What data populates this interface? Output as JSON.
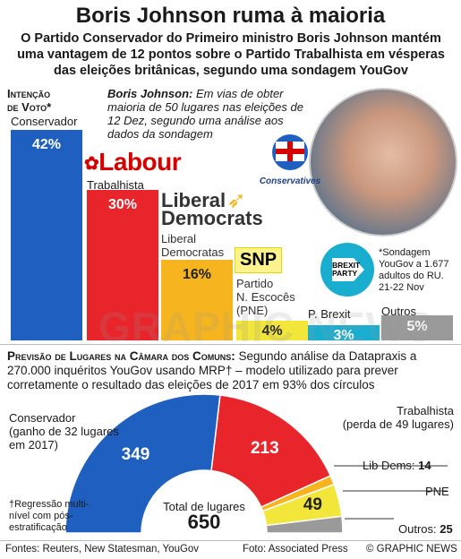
{
  "header": {
    "title": "Boris Johnson ruma à maioria",
    "subtitle": "O Partido Conservador do Primeiro ministro Boris Johnson mantém uma vantagem de 12 pontos sobre o Partido Trabalhista em vésperas das eleições britânicas, segundo uma sondagem YouGov"
  },
  "poll": {
    "heading_line1": "Intenção",
    "heading_line2": "de Voto*",
    "quote_name": "Boris Johnson:",
    "quote_text": " Em vias de obter maioria de 50 lugares nas eleições de 12 Dez, segundo uma análise aos dados da sondagem",
    "footnote": "*Sondagem YouGov a 1.677 adultos do RU. 21-22 Nov",
    "conservatives_logo_text": "Conservatives"
  },
  "logos": {
    "labour": "Labour",
    "libdem_line1": "Liberal",
    "libdem_line2": "Democrats",
    "snp": "SNP",
    "brexit_line1": "BREXIT",
    "brexit_line2": "PARTY"
  },
  "chart_data": [
    {
      "type": "bar",
      "categories": [
        "Conservador",
        "Trabalhista",
        "Liberal Democratas",
        "Partido N. Escocês (PNE)",
        "P. Brexit",
        "Outros"
      ],
      "values": [
        42,
        30,
        16,
        4,
        3,
        5
      ],
      "value_labels": [
        "42%",
        "30%",
        "16%",
        "4%",
        "3%",
        "5%"
      ],
      "colors": [
        "#1f5fbf",
        "#e8252b",
        "#f6b51e",
        "#f2e63a",
        "#19aed0",
        "#9a9a9a"
      ]
    },
    {
      "type": "pie",
      "title": "Previsão de Lugares na Câmara dos Comuns:",
      "description": " Segundo análise da Datapraxis a 270.000 inquéritos YouGov usando MRP† – modelo utilizado para prever corretamente o resultado das eleições de 2017 em 93% dos círculos",
      "categories": [
        "Conservador",
        "Trabalhista",
        "Lib Dems",
        "PNE",
        "Outros"
      ],
      "values": [
        349,
        213,
        14,
        49,
        25
      ],
      "colors": [
        "#1f5fbf",
        "#e8252b",
        "#f6b51e",
        "#f2e63a",
        "#9a9a9a"
      ],
      "labels": {
        "con": "Conservador\n(ganho de 32 lugares\nem 2017)",
        "lab": "Trabalhista\n(perda de 49 lugares)",
        "ld": "Lib Dems:",
        "pne": "PNE",
        "out": "Outros:"
      },
      "center_label": "Total de lugares",
      "center_value": "650",
      "footnote": "†Regressão multi-nível com pós-estratificação"
    }
  ],
  "footer": {
    "sources": "Fontes: Reuters, New Statesman, YouGov",
    "photo": "Foto: Associated Press",
    "credit": "© GRAPHIC NEWS"
  },
  "watermark": "GRAPHIC NEWS"
}
